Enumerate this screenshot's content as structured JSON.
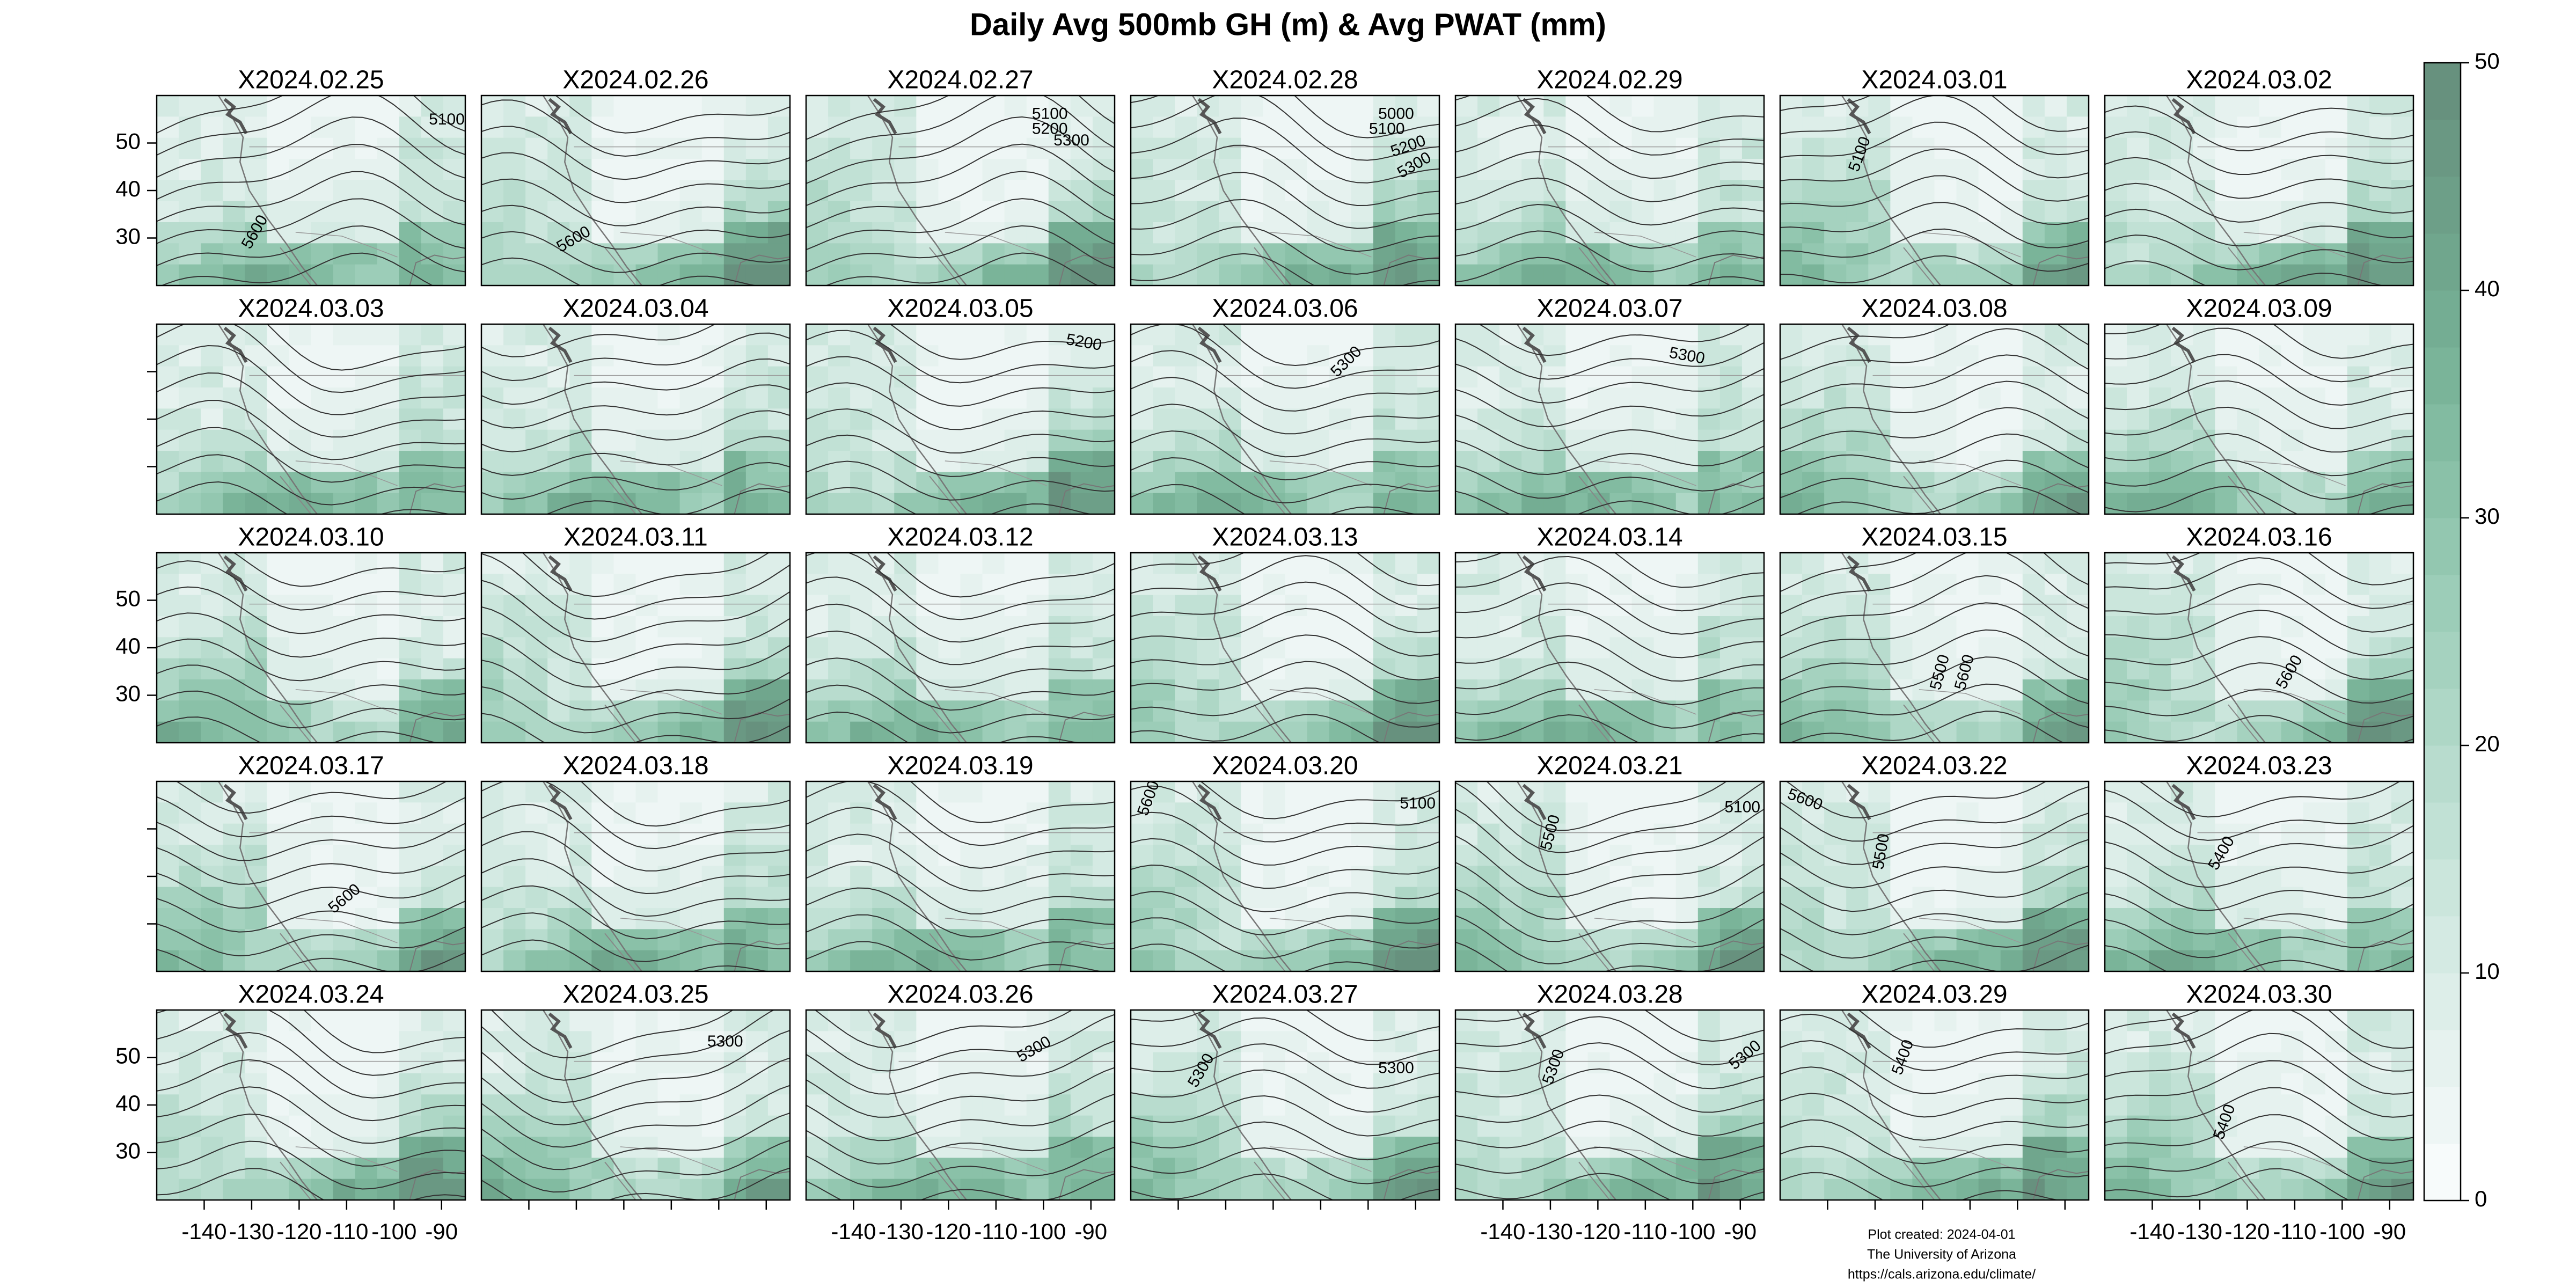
{
  "title": "Daily Avg 500mb GH (m) & Avg PWAT (mm)",
  "panels": [
    {
      "title": "X2024.02.25",
      "contour_labels": [
        5100,
        5600
      ]
    },
    {
      "title": "X2024.02.26",
      "contour_labels": [
        5600
      ]
    },
    {
      "title": "X2024.02.27",
      "contour_labels": [
        5100,
        5200,
        5300
      ]
    },
    {
      "title": "X2024.02.28",
      "contour_labels": [
        5000,
        5100,
        5200,
        5300
      ]
    },
    {
      "title": "X2024.02.29",
      "contour_labels": []
    },
    {
      "title": "X2024.03.01",
      "contour_labels": [
        5100
      ]
    },
    {
      "title": "X2024.03.02",
      "contour_labels": []
    },
    {
      "title": "X2024.03.03",
      "contour_labels": []
    },
    {
      "title": "X2024.03.04",
      "contour_labels": []
    },
    {
      "title": "X2024.03.05",
      "contour_labels": [
        5200
      ]
    },
    {
      "title": "X2024.03.06",
      "contour_labels": [
        5300
      ]
    },
    {
      "title": "X2024.03.07",
      "contour_labels": [
        5300
      ]
    },
    {
      "title": "X2024.03.08",
      "contour_labels": []
    },
    {
      "title": "X2024.03.09",
      "contour_labels": []
    },
    {
      "title": "X2024.03.10",
      "contour_labels": []
    },
    {
      "title": "X2024.03.11",
      "contour_labels": []
    },
    {
      "title": "X2024.03.12",
      "contour_labels": []
    },
    {
      "title": "X2024.03.13",
      "contour_labels": []
    },
    {
      "title": "X2024.03.14",
      "contour_labels": []
    },
    {
      "title": "X2024.03.15",
      "contour_labels": [
        5500,
        5600
      ]
    },
    {
      "title": "X2024.03.16",
      "contour_labels": [
        5600
      ]
    },
    {
      "title": "X2024.03.17",
      "contour_labels": [
        5600
      ]
    },
    {
      "title": "X2024.03.18",
      "contour_labels": []
    },
    {
      "title": "X2024.03.19",
      "contour_labels": []
    },
    {
      "title": "X2024.03.20",
      "contour_labels": [
        5600,
        5100
      ]
    },
    {
      "title": "X2024.03.21",
      "contour_labels": [
        5500,
        5100
      ]
    },
    {
      "title": "X2024.03.22",
      "contour_labels": [
        5600,
        5500
      ]
    },
    {
      "title": "X2024.03.23",
      "contour_labels": [
        5400
      ]
    },
    {
      "title": "X2024.03.24",
      "contour_labels": []
    },
    {
      "title": "X2024.03.25",
      "contour_labels": [
        5300
      ]
    },
    {
      "title": "X2024.03.26",
      "contour_labels": [
        5300
      ]
    },
    {
      "title": "X2024.03.27",
      "contour_labels": [
        5300,
        5300
      ]
    },
    {
      "title": "X2024.03.28",
      "contour_labels": [
        5300,
        5300
      ]
    },
    {
      "title": "X2024.03.29",
      "contour_labels": [
        5400
      ]
    },
    {
      "title": "X2024.03.30",
      "contour_labels": [
        5400
      ]
    }
  ],
  "lat": {
    "lim": [
      20,
      60
    ],
    "ticks": [
      30,
      40,
      50
    ]
  },
  "lon": {
    "lim": [
      -150,
      -85
    ],
    "ticks": [
      -140,
      -130,
      -120,
      -110,
      -100,
      -90
    ]
  },
  "colorbar": {
    "lim": [
      0,
      50
    ],
    "ticks": [
      0,
      10,
      20,
      30,
      40,
      50
    ],
    "colors": [
      "#f7fbfb",
      "#eef6f5",
      "#e6f2ef",
      "#ddeee9",
      "#d4eae3",
      "#cbe6dc",
      "#c1e1d5",
      "#b8dcce",
      "#aed7c6",
      "#a5d2bf",
      "#9ccdb8",
      "#93c7b0",
      "#8ac1a8",
      "#82bba1",
      "#7ab499",
      "#74ad93",
      "#70a68d",
      "#6d9f88",
      "#6a9883",
      "#67917e"
    ]
  },
  "footer": [
    "Plot created: 2024-04-01",
    "The University of Arizona",
    "https://cals.arizona.edu/climate/"
  ]
}
